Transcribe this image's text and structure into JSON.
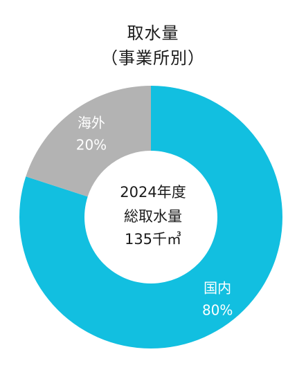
{
  "title": {
    "line1": "取水量",
    "line2": "（事業所別）"
  },
  "center": {
    "line1": "2024年度",
    "line2": "総取水量",
    "line3": "135千㎥"
  },
  "colors": {
    "domestic": "#12bfe0",
    "overseas": "#b3b3b3",
    "label_text": "#ffffff"
  },
  "chart_data": {
    "type": "pie",
    "variant": "donut",
    "title": "取水量（事業所別）",
    "categories": [
      "国内",
      "海外"
    ],
    "values": [
      80,
      20
    ],
    "value_labels": [
      "80%",
      "20%"
    ],
    "colors": [
      "#12bfe0",
      "#b3b3b3"
    ],
    "start_angle": "12 o'clock",
    "direction": "clockwise"
  }
}
